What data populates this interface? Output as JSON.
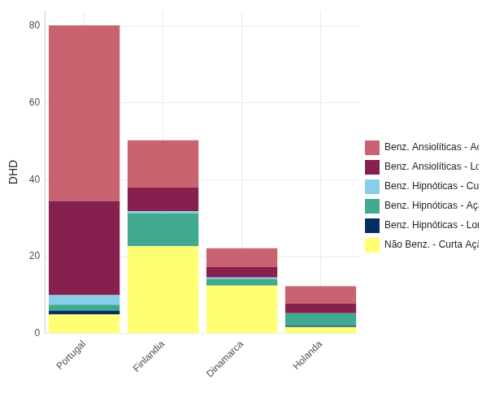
{
  "chart_data": {
    "type": "bar",
    "stacked": true,
    "y_label": "DHD",
    "categories": [
      "Portugal",
      "Finlandia",
      "Dinamarca",
      "Holanda"
    ],
    "series": [
      {
        "name": "Benz. Ansiolíticas - Ação Intermédia",
        "color": "#c8636f",
        "values": [
          45.7,
          12.3,
          4.9,
          4.5
        ]
      },
      {
        "name": "Benz. Ansiolíticas - Longa Ação",
        "color": "#86204f",
        "values": [
          24.5,
          6.2,
          2.7,
          2.5
        ]
      },
      {
        "name": "Benz. Hipnóticas - Curta Ação",
        "color": "#87ceeb",
        "values": [
          2.5,
          0.5,
          0.4,
          0
        ]
      },
      {
        "name": "Benz. Hipnóticas - Ação Intermédia",
        "color": "#41a98f",
        "values": [
          1.5,
          8.6,
          1.7,
          3.3
        ]
      },
      {
        "name": "Benz. Hipnóticas - Longa Ação",
        "color": "#00305f",
        "values": [
          1,
          0,
          0,
          0.3
        ]
      },
      {
        "name": "Não Benz. - Curta Ação",
        "color": "#ffff73",
        "values": [
          5,
          22.7,
          12.5,
          1.7
        ]
      }
    ],
    "ylim": [
      0,
      84
    ],
    "yticks": [
      0,
      20,
      40,
      60,
      80
    ],
    "grid": true,
    "legend": "right"
  }
}
